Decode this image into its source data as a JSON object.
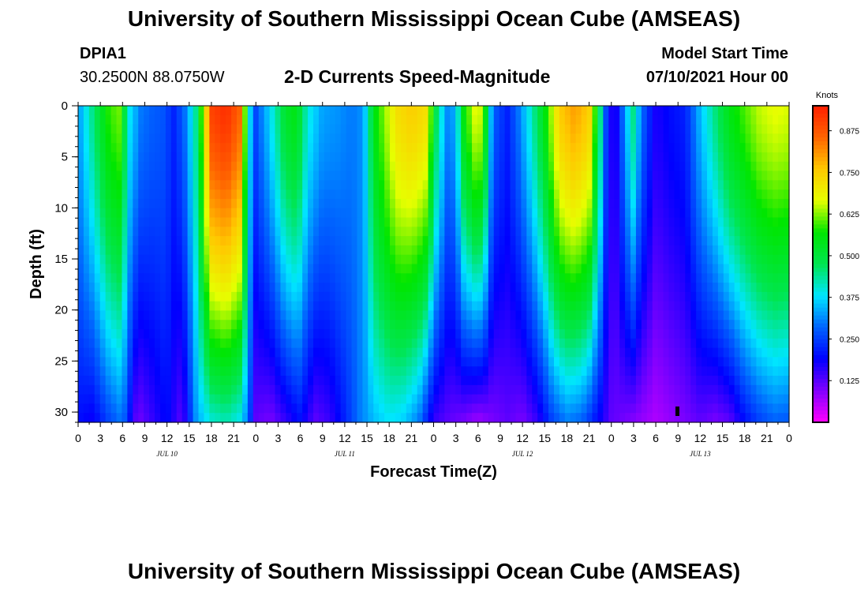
{
  "header": {
    "title": "University of Southern Mississippi Ocean Cube (AMSEAS)",
    "station_id": "DPIA1",
    "coordinates": "30.2500N  88.0750W",
    "chart_subtitle": "2-D Currents Speed-Magnitude",
    "model_start_label": "Model Start Time",
    "model_start_value": "07/10/2021 Hour 00"
  },
  "footer": {
    "title": "University of Southern Mississippi Ocean Cube (AMSEAS)"
  },
  "chart_data": {
    "type": "heatmap",
    "title": "2-D Currents Speed-Magnitude",
    "xlabel": "Forecast Time(Z)",
    "ylabel": "Depth (ft)",
    "x_range_hours": [
      0,
      96
    ],
    "x_tick_labels": [
      "0",
      "3",
      "6",
      "9",
      "12",
      "15",
      "18",
      "21",
      "0",
      "3",
      "6",
      "9",
      "12",
      "15",
      "18",
      "21",
      "0",
      "3",
      "6",
      "9",
      "12",
      "15",
      "18",
      "21",
      "0",
      "3",
      "6",
      "9",
      "12",
      "15",
      "18",
      "21",
      "0"
    ],
    "day_labels": [
      "JUL 10",
      "JUL 11",
      "JUL 12",
      "JUL 13"
    ],
    "y_range_ft": [
      0,
      31
    ],
    "y_reversed": true,
    "y_tick_labels": [
      "0",
      "5",
      "10",
      "15",
      "20",
      "25",
      "30"
    ],
    "colorbar": {
      "unit": "Knots",
      "range": [
        0.0,
        0.95
      ],
      "tick_labels": [
        "0.875",
        "0.750",
        "0.625",
        "0.500",
        "0.375",
        "0.250",
        "0.125"
      ],
      "tick_values": [
        0.875,
        0.75,
        0.625,
        0.5,
        0.375,
        0.25,
        0.125
      ],
      "colors": [
        "#ff00ff",
        "#8000ff",
        "#0000ff",
        "#0064ff",
        "#00e6ff",
        "#00e650",
        "#00e600",
        "#e6ff00",
        "#ffc800",
        "#ff6400",
        "#ff1e00"
      ]
    },
    "surface_speed_knots_by_hour": [
      {
        "h": 0,
        "v": 0.32
      },
      {
        "h": 2,
        "v": 0.45
      },
      {
        "h": 4,
        "v": 0.58
      },
      {
        "h": 5.5,
        "v": 0.62
      },
      {
        "h": 7,
        "v": 0.38
      },
      {
        "h": 8.5,
        "v": 0.3
      },
      {
        "h": 10,
        "v": 0.28
      },
      {
        "h": 11.5,
        "v": 0.27
      },
      {
        "h": 13,
        "v": 0.22
      },
      {
        "h": 14.5,
        "v": 0.3
      },
      {
        "h": 16,
        "v": 0.45
      },
      {
        "h": 18,
        "v": 0.9
      },
      {
        "h": 20,
        "v": 0.93
      },
      {
        "h": 22,
        "v": 0.85
      },
      {
        "h": 23,
        "v": 0.4
      },
      {
        "h": 24,
        "v": 0.26
      },
      {
        "h": 26,
        "v": 0.38
      },
      {
        "h": 28,
        "v": 0.52
      },
      {
        "h": 29.5,
        "v": 0.55
      },
      {
        "h": 31,
        "v": 0.4
      },
      {
        "h": 33,
        "v": 0.33
      },
      {
        "h": 35,
        "v": 0.32
      },
      {
        "h": 37,
        "v": 0.3
      },
      {
        "h": 38.5,
        "v": 0.32
      },
      {
        "h": 40,
        "v": 0.55
      },
      {
        "h": 43,
        "v": 0.72
      },
      {
        "h": 45,
        "v": 0.75
      },
      {
        "h": 47,
        "v": 0.72
      },
      {
        "h": 48.5,
        "v": 0.45
      },
      {
        "h": 50,
        "v": 0.3
      },
      {
        "h": 51,
        "v": 0.35
      },
      {
        "h": 52,
        "v": 0.55
      },
      {
        "h": 54,
        "v": 0.7
      },
      {
        "h": 55,
        "v": 0.55
      },
      {
        "h": 56,
        "v": 0.28
      },
      {
        "h": 58,
        "v": 0.22
      },
      {
        "h": 59.5,
        "v": 0.3
      },
      {
        "h": 61,
        "v": 0.4
      },
      {
        "h": 63,
        "v": 0.55
      },
      {
        "h": 65,
        "v": 0.75
      },
      {
        "h": 67,
        "v": 0.8
      },
      {
        "h": 69,
        "v": 0.75
      },
      {
        "h": 70.5,
        "v": 0.45
      },
      {
        "h": 71.5,
        "v": 0.2
      },
      {
        "h": 72.5,
        "v": 0.15
      },
      {
        "h": 74,
        "v": 0.35
      },
      {
        "h": 75,
        "v": 0.45
      },
      {
        "h": 76,
        "v": 0.3
      },
      {
        "h": 78,
        "v": 0.17
      },
      {
        "h": 80,
        "v": 0.2
      },
      {
        "h": 82,
        "v": 0.22
      },
      {
        "h": 84,
        "v": 0.35
      },
      {
        "h": 86,
        "v": 0.45
      },
      {
        "h": 88,
        "v": 0.55
      },
      {
        "h": 90,
        "v": 0.6
      },
      {
        "h": 92,
        "v": 0.65
      },
      {
        "h": 94,
        "v": 0.67
      },
      {
        "h": 96,
        "v": 0.66
      }
    ],
    "bottom_speed_knots_by_hour": [
      {
        "h": 0,
        "v": 0.2
      },
      {
        "h": 2,
        "v": 0.18
      },
      {
        "h": 4,
        "v": 0.25
      },
      {
        "h": 6,
        "v": 0.3
      },
      {
        "h": 8,
        "v": 0.1
      },
      {
        "h": 10,
        "v": 0.15
      },
      {
        "h": 12,
        "v": 0.2
      },
      {
        "h": 14,
        "v": 0.12
      },
      {
        "h": 16,
        "v": 0.33
      },
      {
        "h": 18,
        "v": 0.4
      },
      {
        "h": 20,
        "v": 0.42
      },
      {
        "h": 22,
        "v": 0.38
      },
      {
        "h": 23,
        "v": 0.28
      },
      {
        "h": 24,
        "v": 0.12
      },
      {
        "h": 26,
        "v": 0.1
      },
      {
        "h": 28,
        "v": 0.15
      },
      {
        "h": 30,
        "v": 0.2
      },
      {
        "h": 32,
        "v": 0.12
      },
      {
        "h": 34,
        "v": 0.15
      },
      {
        "h": 36,
        "v": 0.22
      },
      {
        "h": 38,
        "v": 0.3
      },
      {
        "h": 40,
        "v": 0.35
      },
      {
        "h": 42,
        "v": 0.38
      },
      {
        "h": 44,
        "v": 0.36
      },
      {
        "h": 46,
        "v": 0.3
      },
      {
        "h": 48,
        "v": 0.15
      },
      {
        "h": 50,
        "v": 0.12
      },
      {
        "h": 52,
        "v": 0.1
      },
      {
        "h": 54,
        "v": 0.07
      },
      {
        "h": 56,
        "v": 0.1
      },
      {
        "h": 58,
        "v": 0.12
      },
      {
        "h": 60,
        "v": 0.1
      },
      {
        "h": 62,
        "v": 0.15
      },
      {
        "h": 64,
        "v": 0.25
      },
      {
        "h": 66,
        "v": 0.3
      },
      {
        "h": 68,
        "v": 0.28
      },
      {
        "h": 70,
        "v": 0.2
      },
      {
        "h": 72,
        "v": 0.12
      },
      {
        "h": 74,
        "v": 0.1
      },
      {
        "h": 76,
        "v": 0.08
      },
      {
        "h": 78,
        "v": 0.06
      },
      {
        "h": 80,
        "v": 0.08
      },
      {
        "h": 82,
        "v": 0.1
      },
      {
        "h": 84,
        "v": 0.12
      },
      {
        "h": 86,
        "v": 0.1
      },
      {
        "h": 88,
        "v": 0.12
      },
      {
        "h": 90,
        "v": 0.2
      },
      {
        "h": 92,
        "v": 0.25
      },
      {
        "h": 94,
        "v": 0.28
      },
      {
        "h": 96,
        "v": 0.27
      }
    ]
  }
}
